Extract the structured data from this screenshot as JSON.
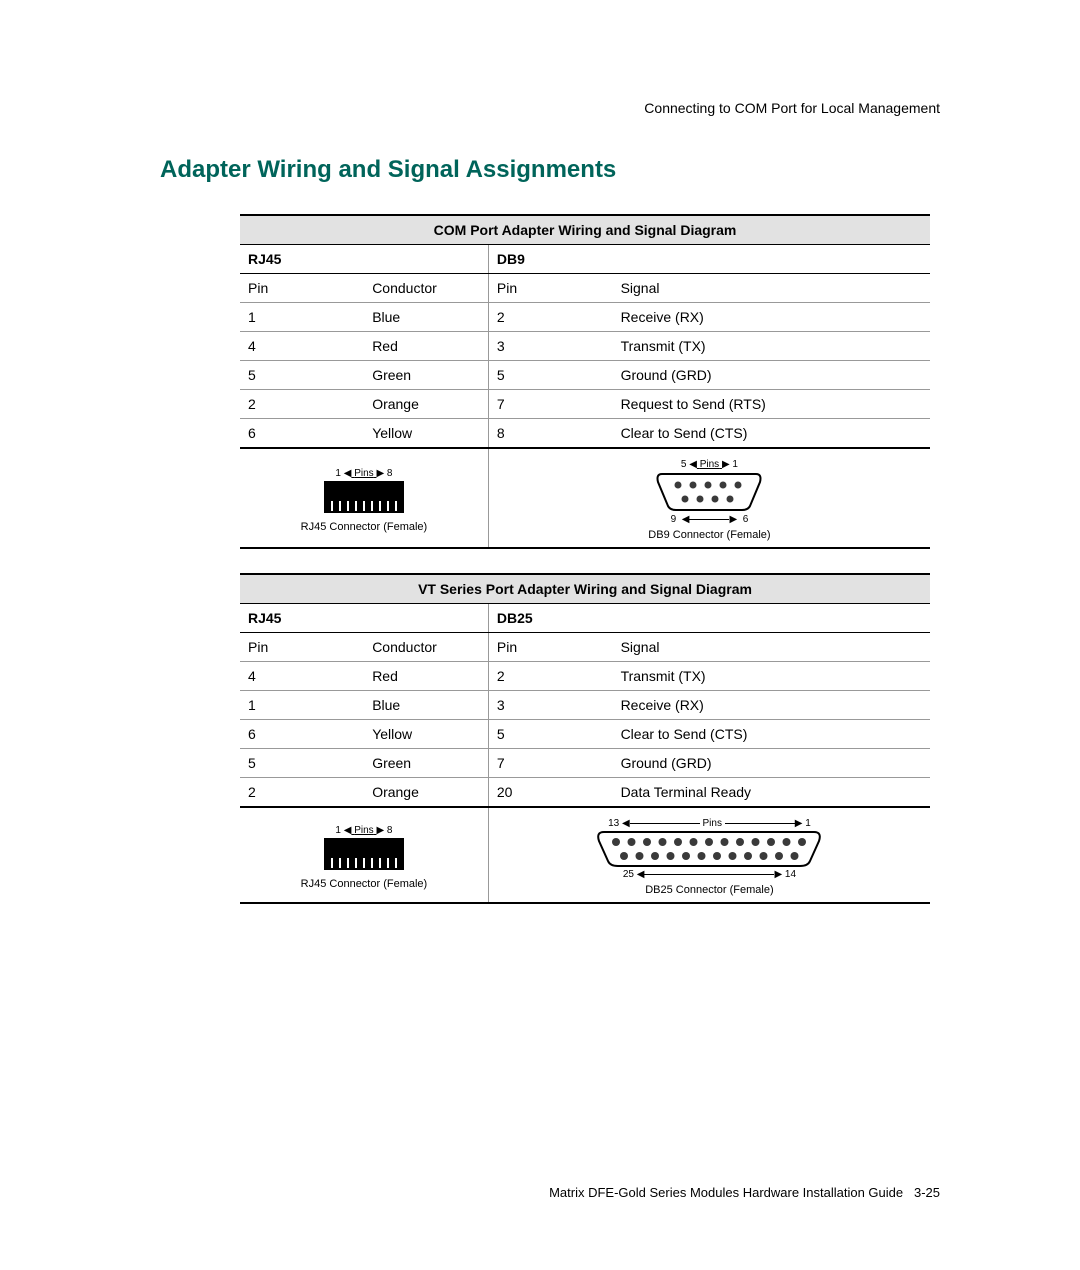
{
  "running_head": "Connecting to COM Port for Local Management",
  "section_title": "Adapter Wiring and Signal Assignments",
  "footer_text": "Matrix DFE-Gold Series Modules Hardware Installation Guide",
  "footer_page": "3-25",
  "colors": {
    "heading": "#00645a",
    "title_row_bg": "#e2e2e2",
    "border_major": "#000000",
    "border_minor": "#999999",
    "connector_fill": "#000000",
    "db_outline": "#000000",
    "db_pin_fill": "#3a3a3a"
  },
  "fonts": {
    "body_pt": 14,
    "heading_pt": 24,
    "caption_pt": 11,
    "pins_label_pt": 10
  },
  "table1": {
    "title": "COM Port Adapter Wiring and Signal Diagram",
    "left_group": "RJ45",
    "right_group": "DB9",
    "headers": [
      "Pin",
      "Conductor",
      "Pin",
      "Signal"
    ],
    "rows": [
      [
        "1",
        "Blue",
        "2",
        "Receive (RX)"
      ],
      [
        "4",
        "Red",
        "3",
        "Transmit (TX)"
      ],
      [
        "5",
        "Green",
        "5",
        "Ground (GRD)"
      ],
      [
        "2",
        "Orange",
        "7",
        "Request to Send (RTS)"
      ],
      [
        "6",
        "Yellow",
        "8",
        "Clear to Send (CTS)"
      ]
    ],
    "rj45": {
      "pins_label": "Pins",
      "pin_left": "1",
      "pin_right": "8",
      "caption": "RJ45 Connector (Female)"
    },
    "db9": {
      "pins_label": "Pins",
      "top_left": "5",
      "top_right": "1",
      "bot_left": "9",
      "bot_right": "6",
      "caption": "DB9  Connector  (Female)"
    }
  },
  "table2": {
    "title": "VT Series Port Adapter Wiring and Signal Diagram",
    "left_group": "RJ45",
    "right_group": "DB25",
    "headers": [
      "Pin",
      "Conductor",
      "Pin",
      "Signal"
    ],
    "rows": [
      [
        "4",
        "Red",
        "2",
        "Transmit (TX)"
      ],
      [
        "1",
        "Blue",
        "3",
        "Receive (RX)"
      ],
      [
        "6",
        "Yellow",
        "5",
        "Clear to Send (CTS)"
      ],
      [
        "5",
        "Green",
        "7",
        "Ground (GRD)"
      ],
      [
        "2",
        "Orange",
        "20",
        "Data Terminal Ready"
      ]
    ],
    "rj45": {
      "pins_label": "Pins",
      "pin_left": "1",
      "pin_right": "8",
      "caption": "RJ45 Connector (Female)"
    },
    "db25": {
      "pins_label": "Pins",
      "top_left": "13",
      "top_right": "1",
      "bot_left": "25",
      "bot_right": "14",
      "caption": "DB25  Connector  (Female)"
    }
  }
}
